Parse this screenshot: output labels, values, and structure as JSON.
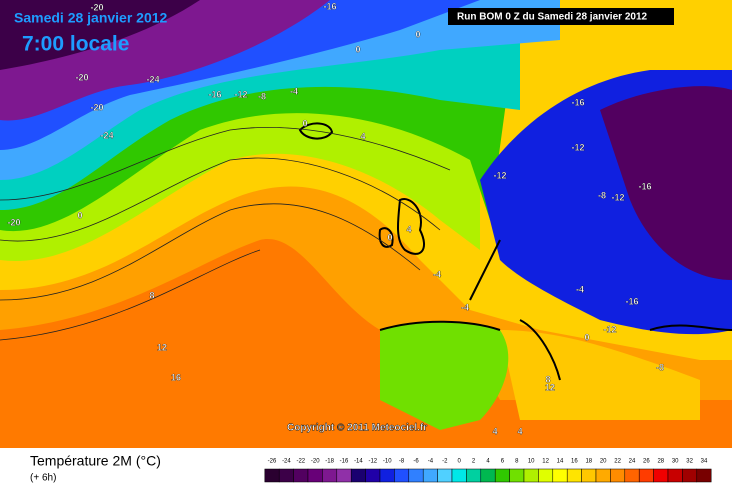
{
  "header": {
    "title": "Samedi 28 janvier 2012",
    "time": "7:00 locale",
    "run": "Run BOM 0 Z du Samedi 28 janvier 2012"
  },
  "copyright": "Copyright © 2011 Meteociel.fr",
  "legend": {
    "title": "Température 2M (°C)",
    "subtitle": "(+ 6h)",
    "values": [
      -26,
      -24,
      -22,
      -20,
      -18,
      -16,
      -14,
      -12,
      -10,
      -8,
      -6,
      -4,
      -2,
      0,
      2,
      4,
      6,
      8,
      10,
      12,
      14,
      16,
      18,
      20,
      22,
      24,
      26,
      28,
      30,
      32,
      34
    ],
    "colors": [
      "#2a0030",
      "#3c0048",
      "#520060",
      "#680078",
      "#7e1890",
      "#9030a8",
      "#1a0070",
      "#2000a8",
      "#1020e0",
      "#2050ff",
      "#3080ff",
      "#40a8ff",
      "#50d0ff",
      "#00e8e8",
      "#00d0a0",
      "#00b850",
      "#30c800",
      "#70e000",
      "#b0f000",
      "#e0ff00",
      "#ffff00",
      "#ffe400",
      "#ffc800",
      "#ffaa00",
      "#ff8c00",
      "#ff6400",
      "#ff3c00",
      "#f00000",
      "#c80000",
      "#a00000",
      "#780000"
    ]
  },
  "contour_labels": [
    "-16",
    "0",
    "-20",
    "-24",
    "-20",
    "-16",
    "-12",
    "-8",
    "-24",
    "-4",
    "0",
    "4",
    "0",
    "0",
    "4",
    "-16",
    "-12",
    "-8",
    "-12",
    "-16",
    "-12",
    "0",
    "8",
    "12",
    "16",
    "-4",
    "-4",
    "-4",
    "-16",
    "-12",
    "-8",
    "12",
    "8",
    "4",
    "0",
    "-20",
    "-20",
    "4"
  ]
}
